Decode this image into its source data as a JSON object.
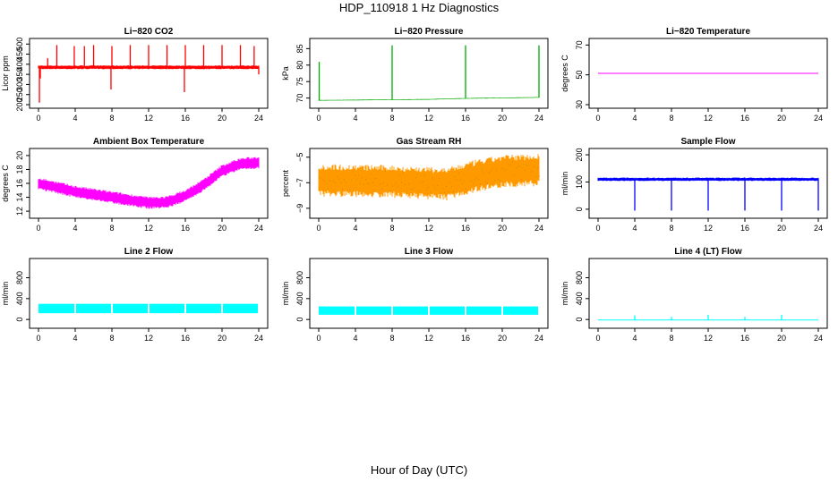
{
  "page": {
    "title": "HDP_110918  1 Hz Diagnostics",
    "xlabel": "Hour of Day (UTC)"
  },
  "chart_data": [
    {
      "type": "line",
      "title": "Li−820 CO2",
      "ylabel": "Licor ppm",
      "xlim": [
        0,
        24
      ],
      "ylim": [
        200,
        510
      ],
      "xticks": [
        0,
        4,
        8,
        12,
        16,
        20,
        24
      ],
      "yticks": [
        200,
        250,
        300,
        350,
        400,
        450,
        500
      ],
      "ytick_labels": [
        "200",
        "250",
        "300",
        "350",
        "400",
        "450",
        "500"
      ],
      "color": "#ff0000",
      "series": [
        {
          "baseline": [
            [
              0,
              385
            ],
            [
              24,
              385
            ]
          ],
          "noise": 12,
          "spikes": [
            [
              0.1,
              210
            ],
            [
              0.2,
              330
            ],
            [
              1.0,
              430
            ],
            [
              2.0,
              495
            ],
            [
              3.9,
              490
            ],
            [
              5.0,
              490
            ],
            [
              6.0,
              495
            ],
            [
              7.9,
              275
            ],
            [
              8.0,
              490
            ],
            [
              10.0,
              495
            ],
            [
              12.0,
              495
            ],
            [
              14.0,
              495
            ],
            [
              15.9,
              262
            ],
            [
              16.0,
              495
            ],
            [
              18.0,
              495
            ],
            [
              20.0,
              495
            ],
            [
              22.0,
              495
            ],
            [
              23.5,
              490
            ],
            [
              24.0,
              350
            ]
          ]
        }
      ]
    },
    {
      "type": "line",
      "title": "Li−820 Pressure",
      "ylabel": "kPa",
      "xlim": [
        0,
        24
      ],
      "ylim": [
        68,
        87
      ],
      "xticks": [
        0,
        4,
        8,
        12,
        16,
        20,
        24
      ],
      "yticks": [
        70,
        75,
        80,
        85
      ],
      "ytick_labels": [
        "70",
        "75",
        "80",
        "85"
      ],
      "color": "#00aa00",
      "series": [
        {
          "baseline": [
            [
              0,
              69.3
            ],
            [
              8,
              69.5
            ],
            [
              12,
              69.6
            ],
            [
              16,
              69.9
            ],
            [
              24,
              70.2
            ]
          ],
          "noise": 0.15,
          "spikes": [
            [
              0.05,
              81
            ],
            [
              8.0,
              86
            ],
            [
              16.0,
              86
            ],
            [
              24.0,
              86
            ]
          ]
        }
      ]
    },
    {
      "type": "line",
      "title": "Li−820 Temperature",
      "ylabel": "degrees C",
      "xlim": [
        0,
        24
      ],
      "ylim": [
        30,
        72
      ],
      "xticks": [
        0,
        4,
        8,
        12,
        16,
        20,
        24
      ],
      "yticks": [
        30,
        50,
        70
      ],
      "ytick_labels": [
        "30",
        "50",
        "70"
      ],
      "color": "#ff00ff",
      "series": [
        {
          "baseline": [
            [
              0,
              51
            ],
            [
              24,
              51
            ]
          ],
          "noise": 0,
          "spikes": []
        }
      ]
    },
    {
      "type": "line",
      "title": "Ambient Box Temperature",
      "ylabel": "degrees C",
      "xlim": [
        0,
        24
      ],
      "ylim": [
        11.5,
        20.5
      ],
      "xticks": [
        0,
        4,
        8,
        12,
        16,
        20,
        24
      ],
      "yticks": [
        12,
        14,
        16,
        18,
        20
      ],
      "ytick_labels": [
        "12",
        "14",
        "16",
        "18",
        "20"
      ],
      "color": "#ff00ff",
      "series": [
        {
          "baseline": [
            [
              0,
              16.0
            ],
            [
              4,
              14.8
            ],
            [
              8,
              14.0
            ],
            [
              12,
              13.2
            ],
            [
              14,
              13.3
            ],
            [
              16,
              14.2
            ],
            [
              18,
              15.8
            ],
            [
              20,
              17.8
            ],
            [
              22,
              18.8
            ],
            [
              24,
              19.0
            ]
          ],
          "noise": 1.1,
          "spikes": []
        }
      ]
    },
    {
      "type": "line",
      "title": "Gas Stream RH",
      "ylabel": "percent",
      "xlim": [
        0,
        24
      ],
      "ylim": [
        -9.5,
        -4.6
      ],
      "xticks": [
        0,
        4,
        8,
        12,
        16,
        20,
        24
      ],
      "yticks": [
        -9,
        -7,
        -5
      ],
      "ytick_labels": [
        "−9",
        "−7",
        "−5"
      ],
      "color": "#ff9900",
      "dot_color": "#b08000",
      "series": [
        {
          "baseline": [
            [
              0,
              -6.8
            ],
            [
              8,
              -6.9
            ],
            [
              14,
              -7.1
            ],
            [
              17,
              -6.5
            ],
            [
              20,
              -6.1
            ],
            [
              24,
              -6.0
            ]
          ],
          "noise": 1.6,
          "spikes": []
        }
      ]
    },
    {
      "type": "line",
      "title": "Sample Flow",
      "ylabel": "ml/min",
      "xlim": [
        0,
        24
      ],
      "ylim": [
        -20,
        210
      ],
      "xticks": [
        0,
        4,
        8,
        12,
        16,
        20,
        24
      ],
      "yticks": [
        0,
        100,
        200
      ],
      "ytick_labels": [
        "0",
        "100",
        "200"
      ],
      "color": "#0000ff",
      "series": [
        {
          "baseline": [
            [
              0,
              110
            ],
            [
              24,
              110
            ]
          ],
          "noise": 8,
          "spikes": [
            [
              4.0,
              -5
            ],
            [
              8.0,
              -5
            ],
            [
              12.0,
              -5
            ],
            [
              16.0,
              -5
            ],
            [
              20.0,
              -5
            ],
            [
              24.0,
              -5
            ]
          ]
        }
      ]
    },
    {
      "type": "area",
      "title": "Line 2 Flow",
      "ylabel": "ml/min",
      "xlim": [
        0,
        24
      ],
      "ylim": [
        -100,
        1100
      ],
      "xticks": [
        0,
        4,
        8,
        12,
        16,
        20,
        24
      ],
      "yticks": [
        0,
        400,
        800
      ],
      "ytick_labels": [
        "0",
        "400",
        "800"
      ],
      "color": "#00ffff",
      "series": [
        {
          "band": [
            [
              0,
              120,
              300
            ],
            [
              24,
              120,
              300
            ]
          ],
          "gaps": [
            4,
            8,
            12,
            16,
            20
          ],
          "spikes": []
        }
      ]
    },
    {
      "type": "area",
      "title": "Line 3 Flow",
      "ylabel": "ml/min",
      "xlim": [
        0,
        24
      ],
      "ylim": [
        -100,
        1100
      ],
      "xticks": [
        0,
        4,
        8,
        12,
        16,
        20,
        24
      ],
      "yticks": [
        0,
        400,
        800
      ],
      "ytick_labels": [
        "0",
        "400",
        "800"
      ],
      "color": "#00ffff",
      "series": [
        {
          "band": [
            [
              0,
              90,
              250
            ],
            [
              24,
              90,
              250
            ]
          ],
          "gaps": [
            4,
            8,
            12,
            16,
            20
          ],
          "spikes": []
        }
      ]
    },
    {
      "type": "line",
      "title": "Line 4 (LT) Flow",
      "ylabel": "ml/min",
      "xlim": [
        0,
        24
      ],
      "ylim": [
        -100,
        1100
      ],
      "xticks": [
        0,
        4,
        8,
        12,
        16,
        20,
        24
      ],
      "yticks": [
        0,
        400,
        800
      ],
      "ytick_labels": [
        "0",
        "400",
        "800"
      ],
      "color": "#00ffff",
      "series": [
        {
          "baseline": [
            [
              0,
              -10
            ],
            [
              24,
              -10
            ]
          ],
          "noise": 0,
          "spikes": [
            [
              4.0,
              80
            ],
            [
              8.0,
              50
            ],
            [
              12.0,
              90
            ],
            [
              16.0,
              50
            ],
            [
              20.0,
              90
            ]
          ]
        }
      ]
    }
  ]
}
